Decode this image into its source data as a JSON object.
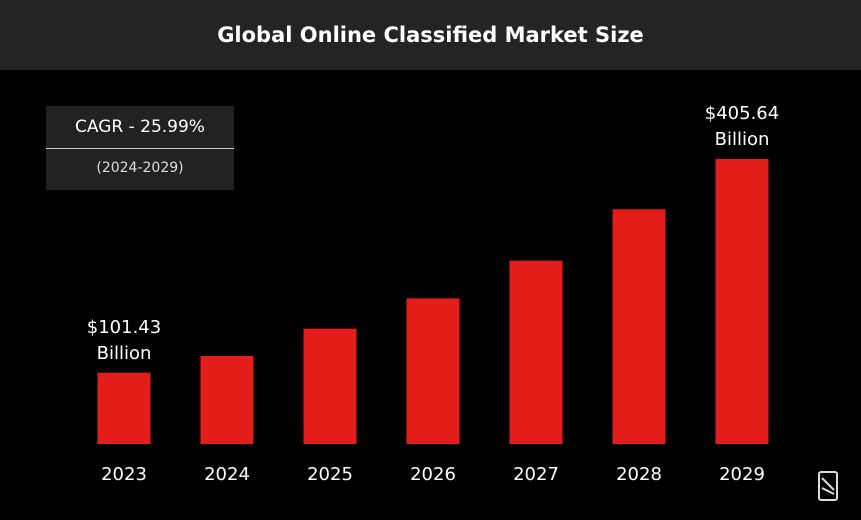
{
  "chart_data": {
    "type": "bar",
    "title": "Global Online Classified Market Size",
    "categories": [
      "2023",
      "2024",
      "2025",
      "2026",
      "2027",
      "2028",
      "2029"
    ],
    "values": [
      101.43,
      125.3,
      164.1,
      207.3,
      261.0,
      334.1,
      405.64
    ],
    "value_labels": [
      "$101.43 Billion",
      null,
      null,
      null,
      null,
      null,
      "$405.64 Billion"
    ],
    "color": "#e31e1a",
    "annotation": {
      "title": "CAGR - 25.99%",
      "period": "(2024-2029)"
    }
  }
}
